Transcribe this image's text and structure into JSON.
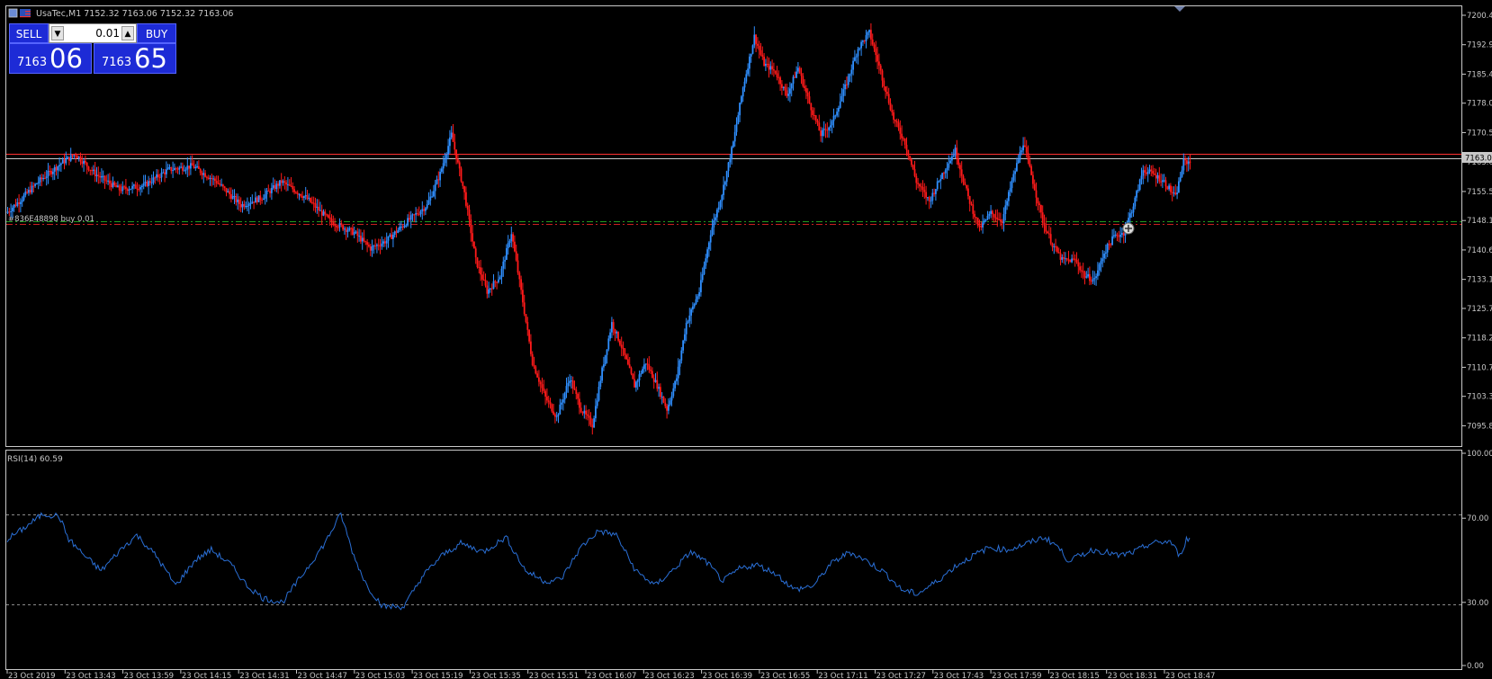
{
  "window": {
    "title": "UsaTec,M1 7152.32 7163.06 7152.32 7163.06"
  },
  "trade_panel": {
    "sell_label": "SELL",
    "buy_label": "BUY",
    "lot_value": "0.01",
    "sell_price_big": "7163",
    "sell_price_pips": "06",
    "buy_price_big": "7163",
    "buy_price_pips": "65"
  },
  "order_label": "#836E48898 buy 0.01",
  "rsi_label": "RSI(14) 60.59",
  "colors": {
    "bull": "#2f8fff",
    "bear": "#ff1a1a",
    "rsi_line": "#2a6fd6",
    "bid_line": "#c8c8c8",
    "ask_line": "#ff3030",
    "order_line_green": "#1f9a1f",
    "order_line_red": "#c82020",
    "panel_blue": "#1d2bd6"
  },
  "price_axis": {
    "ticks": [
      "7200.4",
      "7192.9",
      "7185.4",
      "7178.0",
      "7170.5",
      "7163.0",
      "7155.5",
      "7148.1",
      "7140.6",
      "7133.1",
      "7125.7",
      "7118.2",
      "7110.7",
      "7103.3",
      "7095.8"
    ],
    "current": "7163.0"
  },
  "rsi_axis": {
    "ticks": [
      "100.00",
      "70.00",
      "30.00",
      "0.00"
    ]
  },
  "time_axis": {
    "ticks": [
      "23 Oct 2019",
      "23 Oct 13:43",
      "23 Oct 13:59",
      "23 Oct 14:15",
      "23 Oct 14:31",
      "23 Oct 14:47",
      "23 Oct 15:03",
      "23 Oct 15:19",
      "23 Oct 15:35",
      "23 Oct 15:51",
      "23 Oct 16:07",
      "23 Oct 16:23",
      "23 Oct 16:39",
      "23 Oct 16:55",
      "23 Oct 17:11",
      "23 Oct 17:27",
      "23 Oct 17:43",
      "23 Oct 17:59",
      "23 Oct 18:15",
      "23 Oct 18:31",
      "23 Oct 18:47"
    ]
  },
  "chart_data": {
    "type": "candlestick",
    "symbol": "UsaTec",
    "timeframe": "M1",
    "bid": 7163.06,
    "ask": 7163.65,
    "order_price": 7147.5,
    "ylim": [
      7092.0,
      7202.0
    ],
    "waypoints": [
      [
        0,
        7150
      ],
      [
        8,
        7153
      ],
      [
        20,
        7158
      ],
      [
        35,
        7163
      ],
      [
        43,
        7165
      ],
      [
        55,
        7160
      ],
      [
        70,
        7156
      ],
      [
        85,
        7157
      ],
      [
        100,
        7161
      ],
      [
        115,
        7162
      ],
      [
        130,
        7158
      ],
      [
        145,
        7152
      ],
      [
        158,
        7154
      ],
      [
        170,
        7158
      ],
      [
        185,
        7154
      ],
      [
        200,
        7148
      ],
      [
        215,
        7145
      ],
      [
        225,
        7141
      ],
      [
        235,
        7143
      ],
      [
        248,
        7148
      ],
      [
        260,
        7152
      ],
      [
        268,
        7160
      ],
      [
        275,
        7170
      ],
      [
        283,
        7155
      ],
      [
        290,
        7138
      ],
      [
        297,
        7130
      ],
      [
        305,
        7134
      ],
      [
        312,
        7145
      ],
      [
        318,
        7130
      ],
      [
        325,
        7112
      ],
      [
        333,
        7103
      ],
      [
        340,
        7098
      ],
      [
        348,
        7108
      ],
      [
        355,
        7100
      ],
      [
        362,
        7096
      ],
      [
        368,
        7110
      ],
      [
        374,
        7122
      ],
      [
        380,
        7116
      ],
      [
        388,
        7106
      ],
      [
        395,
        7112
      ],
      [
        402,
        7106
      ],
      [
        408,
        7100
      ],
      [
        414,
        7108
      ],
      [
        420,
        7122
      ],
      [
        428,
        7130
      ],
      [
        435,
        7145
      ],
      [
        442,
        7155
      ],
      [
        449,
        7168
      ],
      [
        455,
        7182
      ],
      [
        462,
        7195
      ],
      [
        468,
        7188
      ],
      [
        475,
        7186
      ],
      [
        482,
        7180
      ],
      [
        489,
        7187
      ],
      [
        496,
        7178
      ],
      [
        503,
        7170
      ],
      [
        510,
        7173
      ],
      [
        518,
        7182
      ],
      [
        526,
        7192
      ],
      [
        533,
        7196
      ],
      [
        540,
        7186
      ],
      [
        548,
        7174
      ],
      [
        555,
        7168
      ],
      [
        562,
        7158
      ],
      [
        570,
        7153
      ],
      [
        578,
        7160
      ],
      [
        586,
        7166
      ],
      [
        594,
        7154
      ],
      [
        601,
        7146
      ],
      [
        608,
        7150
      ],
      [
        615,
        7148
      ],
      [
        621,
        7158
      ],
      [
        628,
        7168
      ],
      [
        634,
        7158
      ],
      [
        640,
        7148
      ],
      [
        646,
        7142
      ],
      [
        652,
        7138
      ],
      [
        660,
        7138
      ],
      [
        666,
        7134
      ],
      [
        672,
        7133
      ],
      [
        678,
        7140
      ],
      [
        684,
        7144
      ],
      [
        690,
        7145
      ],
      [
        696,
        7152
      ],
      [
        702,
        7161
      ],
      [
        708,
        7160
      ],
      [
        715,
        7158
      ],
      [
        722,
        7154
      ],
      [
        727,
        7163
      ]
    ],
    "rsi": {
      "name": "RSI(14)",
      "last": 60.59,
      "ylim": [
        0,
        100
      ],
      "levels": [
        70,
        30
      ],
      "waypoints": [
        [
          0,
          60
        ],
        [
          10,
          65
        ],
        [
          22,
          72
        ],
        [
          32,
          71
        ],
        [
          38,
          60
        ],
        [
          48,
          52
        ],
        [
          58,
          45
        ],
        [
          70,
          55
        ],
        [
          80,
          62
        ],
        [
          92,
          52
        ],
        [
          104,
          38
        ],
        [
          116,
          50
        ],
        [
          126,
          55
        ],
        [
          138,
          48
        ],
        [
          148,
          38
        ],
        [
          158,
          32
        ],
        [
          170,
          30
        ],
        [
          184,
          45
        ],
        [
          196,
          58
        ],
        [
          206,
          72
        ],
        [
          214,
          52
        ],
        [
          222,
          38
        ],
        [
          232,
          28
        ],
        [
          245,
          28
        ],
        [
          256,
          42
        ],
        [
          268,
          52
        ],
        [
          280,
          58
        ],
        [
          294,
          54
        ],
        [
          308,
          61
        ],
        [
          320,
          45
        ],
        [
          332,
          40
        ],
        [
          342,
          41
        ],
        [
          354,
          56
        ],
        [
          365,
          64
        ],
        [
          376,
          62
        ],
        [
          388,
          45
        ],
        [
          400,
          38
        ],
        [
          412,
          46
        ],
        [
          422,
          54
        ],
        [
          432,
          49
        ],
        [
          442,
          40
        ],
        [
          452,
          46
        ],
        [
          462,
          48
        ],
        [
          474,
          44
        ],
        [
          486,
          36
        ],
        [
          498,
          38
        ],
        [
          508,
          48
        ],
        [
          520,
          54
        ],
        [
          530,
          50
        ],
        [
          542,
          44
        ],
        [
          552,
          36
        ],
        [
          562,
          34
        ],
        [
          574,
          40
        ],
        [
          585,
          47
        ],
        [
          596,
          52
        ],
        [
          606,
          56
        ],
        [
          618,
          55
        ],
        [
          630,
          58
        ],
        [
          640,
          61
        ],
        [
          648,
          57
        ],
        [
          655,
          50
        ],
        [
          662,
          52
        ],
        [
          670,
          55
        ],
        [
          678,
          54
        ],
        [
          686,
          52
        ],
        [
          696,
          54
        ],
        [
          706,
          58
        ],
        [
          718,
          59
        ],
        [
          724,
          52
        ],
        [
          728,
          60
        ]
      ]
    }
  }
}
